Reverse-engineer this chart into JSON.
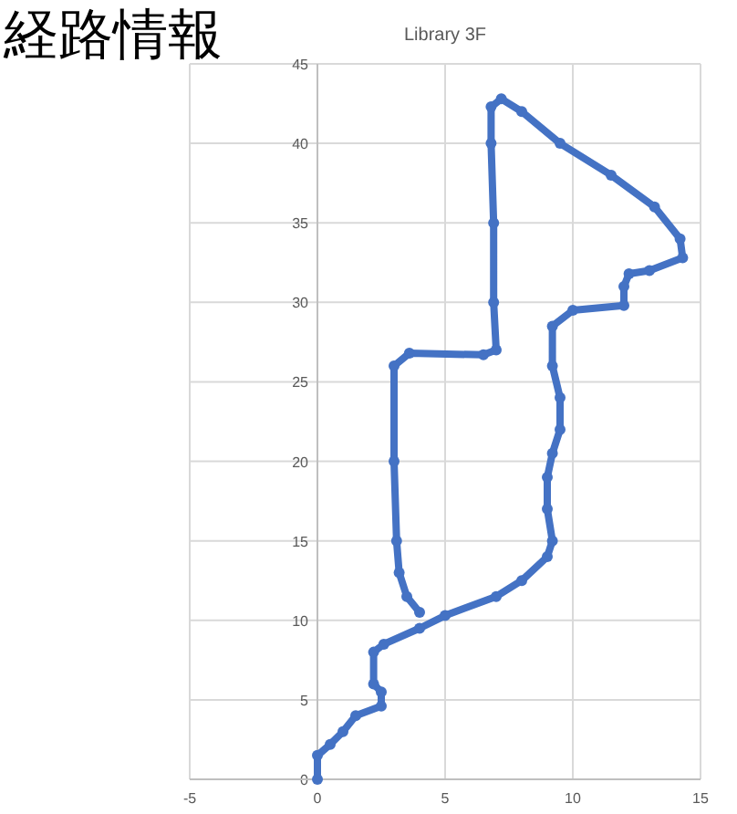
{
  "chart_data": {
    "type": "line",
    "title": "Library 3F",
    "annotations": [
      "経路情報"
    ],
    "marker": "circle",
    "grid": true,
    "xlim": [
      -5,
      15
    ],
    "xticks": [
      -5,
      0,
      5,
      10,
      15
    ],
    "ylim": [
      0,
      45
    ],
    "yticks": [
      0,
      5,
      10,
      15,
      20,
      25,
      30,
      35,
      40,
      45
    ],
    "series": [
      {
        "color": "#4472c4",
        "x": [
          0,
          0,
          0.5,
          1,
          1.5,
          2.5,
          2.5,
          2.2,
          2.2,
          2.6,
          4,
          5,
          7,
          8,
          9,
          9.2,
          9,
          9,
          9.2,
          9.5,
          9.5,
          9.2,
          9.2,
          10,
          12,
          12,
          12.2,
          13,
          14.3,
          14.2,
          13.2,
          11.5,
          9.5,
          8,
          7.2,
          6.8,
          6.8,
          6.9,
          6.9,
          7,
          6.5,
          3.6,
          3,
          3,
          3.1,
          3.2,
          3.5,
          4
        ],
        "values": [
          0,
          1.5,
          2.2,
          3,
          4,
          4.6,
          5.5,
          6,
          8,
          8.5,
          9.5,
          10.3,
          11.5,
          12.5,
          14,
          15,
          17,
          19,
          20.5,
          22,
          24,
          26,
          28.5,
          29.5,
          29.8,
          31,
          31.8,
          32,
          32.8,
          34,
          36,
          38,
          40,
          42,
          42.8,
          42.3,
          40,
          35,
          30,
          27,
          26.7,
          26.8,
          26,
          20,
          15,
          13,
          11.5,
          10.5
        ]
      }
    ]
  }
}
